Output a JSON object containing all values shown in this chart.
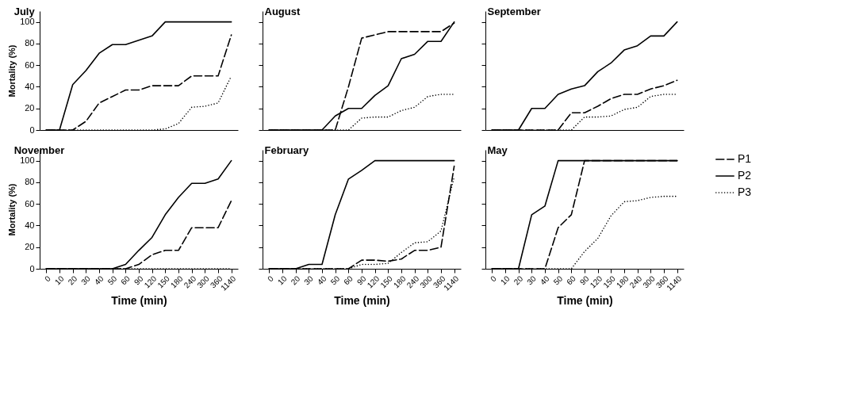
{
  "chart_data": [
    {
      "type": "line",
      "title": "July",
      "ylabel": "Mortality (%)",
      "categories": [
        "0",
        "10",
        "20",
        "30",
        "40",
        "50",
        "60",
        "90",
        "120",
        "150",
        "180",
        "240",
        "300",
        "360",
        "1140"
      ],
      "ylim": [
        0,
        110
      ],
      "yticks": [
        0,
        20,
        40,
        60,
        80,
        100
      ],
      "tick_labels": "y",
      "series": [
        {
          "color": "#000000",
          "line_style": "dashed",
          "values": [
            0,
            0,
            0,
            8,
            25,
            31,
            37,
            37,
            41,
            41,
            41,
            50,
            50,
            50,
            88
          ]
        },
        {
          "color": "#000000",
          "line_style": "solid",
          "values": [
            0,
            0,
            42,
            55,
            71,
            79,
            79,
            83,
            87,
            100,
            100,
            100,
            100,
            100,
            100
          ]
        },
        {
          "color": "#000000",
          "line_style": "dotted",
          "values": [
            0,
            0,
            0,
            0,
            0,
            0,
            0,
            0,
            0,
            1,
            6,
            21,
            22,
            25,
            50
          ]
        }
      ]
    },
    {
      "type": "line",
      "title": "August",
      "categories": [
        "0",
        "10",
        "20",
        "30",
        "40",
        "50",
        "60",
        "90",
        "120",
        "150",
        "180",
        "240",
        "300",
        "360",
        "1140"
      ],
      "ylim": [
        0,
        110
      ],
      "yticks": [
        0,
        20,
        40,
        60,
        80,
        100
      ],
      "tick_labels": false,
      "series": [
        {
          "color": "#000000",
          "line_style": "dashed",
          "values": [
            0,
            0,
            0,
            0,
            0,
            0,
            40,
            85,
            88,
            91,
            91,
            91,
            91,
            91,
            99
          ]
        },
        {
          "color": "#000000",
          "line_style": "solid",
          "values": [
            0,
            0,
            0,
            0,
            0,
            13,
            20,
            20,
            32,
            41,
            66,
            70,
            82,
            82,
            100
          ]
        },
        {
          "color": "#000000",
          "line_style": "dotted",
          "values": [
            0,
            0,
            0,
            0,
            0,
            0,
            0,
            11,
            12,
            12,
            18,
            21,
            31,
            33,
            33
          ]
        }
      ]
    },
    {
      "type": "line",
      "title": "September",
      "categories": [
        "0",
        "10",
        "20",
        "30",
        "40",
        "50",
        "60",
        "90",
        "120",
        "150",
        "180",
        "240",
        "300",
        "360",
        "1140"
      ],
      "ylim": [
        0,
        110
      ],
      "yticks": [
        0,
        20,
        40,
        60,
        80,
        100
      ],
      "tick_labels": false,
      "series": [
        {
          "color": "#000000",
          "line_style": "dashed",
          "values": [
            0,
            0,
            0,
            0,
            0,
            0,
            16,
            16,
            22,
            29,
            33,
            33,
            38,
            41,
            46
          ]
        },
        {
          "color": "#000000",
          "line_style": "solid",
          "values": [
            0,
            0,
            0,
            20,
            20,
            33,
            38,
            41,
            54,
            62,
            74,
            78,
            87,
            87,
            100
          ]
        },
        {
          "color": "#000000",
          "line_style": "dotted",
          "values": [
            0,
            0,
            0,
            0,
            0,
            0,
            0,
            12,
            12,
            13,
            19,
            21,
            31,
            33,
            33
          ]
        }
      ]
    },
    {
      "type": "line",
      "title": "November",
      "xlabel": "Time (min)",
      "ylabel": "Mortality (%)",
      "categories": [
        "0",
        "10",
        "20",
        "30",
        "40",
        "50",
        "60",
        "90",
        "120",
        "150",
        "180",
        "240",
        "300",
        "360",
        "1140"
      ],
      "ylim": [
        0,
        110
      ],
      "yticks": [
        0,
        20,
        40,
        60,
        80,
        100
      ],
      "series": [
        {
          "color": "#000000",
          "line_style": "dashed",
          "values": [
            0,
            0,
            0,
            0,
            0,
            0,
            0,
            4,
            13,
            17,
            17,
            38,
            38,
            38,
            63
          ]
        },
        {
          "color": "#000000",
          "line_style": "solid",
          "values": [
            0,
            0,
            0,
            0,
            0,
            0,
            4,
            17,
            29,
            50,
            66,
            79,
            79,
            83,
            100
          ]
        },
        {
          "color": "#000000",
          "line_style": "dotted",
          "values": [
            0,
            0,
            0,
            0,
            0,
            0,
            0,
            0,
            0,
            0,
            0,
            0,
            0,
            0,
            0
          ]
        }
      ]
    },
    {
      "type": "line",
      "title": "February",
      "xlabel": "Time (min)",
      "categories": [
        "0",
        "10",
        "20",
        "30",
        "40",
        "50",
        "60",
        "90",
        "120",
        "150",
        "180",
        "240",
        "300",
        "360",
        "1140"
      ],
      "ylim": [
        0,
        110
      ],
      "yticks": [
        0,
        20,
        40,
        60,
        80,
        100
      ],
      "tick_labels": "x",
      "series": [
        {
          "color": "#000000",
          "line_style": "dashed",
          "values": [
            0,
            0,
            0,
            0,
            0,
            0,
            0,
            8,
            8,
            7,
            9,
            17,
            17,
            20,
            95
          ]
        },
        {
          "color": "#000000",
          "line_style": "solid",
          "values": [
            0,
            0,
            0,
            4,
            4,
            50,
            83,
            91,
            100,
            100,
            100,
            100,
            100,
            100,
            100
          ]
        },
        {
          "color": "#000000",
          "line_style": "dotted",
          "values": [
            0,
            0,
            0,
            0,
            0,
            0,
            0,
            4,
            4,
            5,
            15,
            24,
            25,
            35,
            85
          ]
        }
      ]
    },
    {
      "type": "line",
      "title": "May",
      "xlabel": "Time (min)",
      "categories": [
        "0",
        "10",
        "20",
        "30",
        "40",
        "50",
        "60",
        "90",
        "120",
        "150",
        "180",
        "240",
        "300",
        "360",
        "1140"
      ],
      "ylim": [
        0,
        110
      ],
      "yticks": [
        0,
        20,
        40,
        60,
        80,
        100
      ],
      "tick_labels": "x",
      "legend": "right",
      "series": [
        {
          "name": "P1",
          "color": "#000000",
          "line_style": "dashed",
          "values": [
            0,
            0,
            0,
            0,
            0,
            38,
            50,
            100,
            100,
            100,
            100,
            100,
            100,
            100,
            100
          ]
        },
        {
          "name": "P2",
          "color": "#000000",
          "line_style": "solid",
          "values": [
            0,
            0,
            0,
            50,
            58,
            100,
            100,
            100,
            100,
            100,
            100,
            100,
            100,
            100,
            100
          ]
        },
        {
          "name": "P3",
          "color": "#000000",
          "line_style": "dotted",
          "values": [
            0,
            0,
            0,
            0,
            0,
            0,
            0,
            16,
            28,
            49,
            62,
            63,
            66,
            67,
            67
          ]
        }
      ]
    }
  ]
}
